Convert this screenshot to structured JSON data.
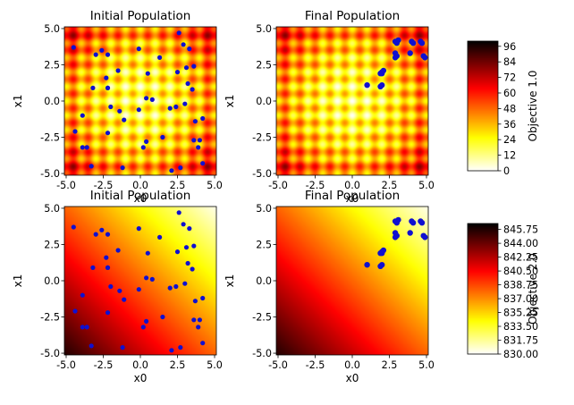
{
  "chart_data": [
    {
      "type": "heatmap",
      "title": "Initial Population",
      "xlabel": "x0",
      "ylabel": "x1",
      "xlim": [
        -5.12,
        5.12
      ],
      "ylim": [
        -5.12,
        5.12
      ],
      "field": "objective_1",
      "population": "initial",
      "xticks": [
        "-5.0",
        "-2.5",
        "0.0",
        "2.5",
        "5.0"
      ],
      "yticks": [
        "-5.0",
        "-2.5",
        "0.0",
        "2.5",
        "5.0"
      ]
    },
    {
      "type": "heatmap",
      "title": "Final Population",
      "xlabel": "x0",
      "ylabel": "x1",
      "xlim": [
        -5.12,
        5.12
      ],
      "ylim": [
        -5.12,
        5.12
      ],
      "field": "objective_1",
      "population": "final",
      "xticks": [
        "-5.0",
        "-2.5",
        "0.0",
        "2.5",
        "5.0"
      ],
      "yticks": [
        "-5.0",
        "-2.5",
        "0.0",
        "2.5",
        "5.0"
      ]
    },
    {
      "type": "heatmap",
      "title": "Initial Population",
      "xlabel": "x0",
      "ylabel": "x1",
      "xlim": [
        -5.12,
        5.12
      ],
      "ylim": [
        -5.12,
        5.12
      ],
      "field": "objective_2",
      "population": "initial",
      "xticks": [
        "-5.0",
        "-2.5",
        "0.0",
        "2.5",
        "5.0"
      ],
      "yticks": [
        "-5.0",
        "-2.5",
        "0.0",
        "2.5",
        "5.0"
      ]
    },
    {
      "type": "heatmap",
      "title": "Final Population",
      "xlabel": "x0",
      "ylabel": "x1",
      "xlim": [
        -5.12,
        5.12
      ],
      "ylim": [
        -5.12,
        5.12
      ],
      "field": "objective_2",
      "population": "final",
      "xticks": [
        "-5.0",
        "-2.5",
        "0.0",
        "2.5",
        "5.0"
      ],
      "yticks": [
        "-5.0",
        "-2.5",
        "0.0",
        "2.5",
        "5.0"
      ]
    }
  ],
  "colorbars": [
    {
      "label": "Objective 1.0",
      "range": [
        0,
        100
      ],
      "ticks": [
        {
          "value": 0,
          "label": "0"
        },
        {
          "value": 12,
          "label": "12"
        },
        {
          "value": 24,
          "label": "24"
        },
        {
          "value": 36,
          "label": "36"
        },
        {
          "value": 48,
          "label": "48"
        },
        {
          "value": 60,
          "label": "60"
        },
        {
          "value": 72,
          "label": "72"
        },
        {
          "value": 84,
          "label": "84"
        },
        {
          "value": 96,
          "label": "96"
        }
      ]
    },
    {
      "label": "Objective 2.0",
      "range": [
        830.0,
        846.5
      ],
      "ticks": [
        {
          "value": 830.0,
          "label": "830.00"
        },
        {
          "value": 831.75,
          "label": "831.75"
        },
        {
          "value": 833.5,
          "label": "833.50"
        },
        {
          "value": 835.25,
          "label": "835.25"
        },
        {
          "value": 837.0,
          "label": "837.00"
        },
        {
          "value": 838.75,
          "label": "838.75"
        },
        {
          "value": 840.5,
          "label": "840.50"
        },
        {
          "value": 842.25,
          "label": "842.25"
        },
        {
          "value": 844.0,
          "label": "844.00"
        },
        {
          "value": 845.75,
          "label": "845.75"
        }
      ]
    }
  ],
  "colormap": "hot_r",
  "marker_color": "#1010d0",
  "initial_population": [
    [
      -4.5,
      3.7
    ],
    [
      -3.0,
      3.2
    ],
    [
      -2.6,
      3.5
    ],
    [
      -2.2,
      3.2
    ],
    [
      -0.1,
      3.6
    ],
    [
      1.3,
      3.0
    ],
    [
      2.6,
      4.7
    ],
    [
      2.9,
      3.9
    ],
    [
      3.3,
      3.6
    ],
    [
      -2.3,
      1.6
    ],
    [
      -2.2,
      0.9
    ],
    [
      -1.5,
      2.1
    ],
    [
      0.5,
      1.9
    ],
    [
      2.5,
      2.0
    ],
    [
      3.1,
      2.3
    ],
    [
      3.6,
      2.4
    ],
    [
      -3.2,
      0.9
    ],
    [
      -2.2,
      0.9
    ],
    [
      -2.0,
      -0.4
    ],
    [
      -1.4,
      -0.7
    ],
    [
      0.4,
      0.2
    ],
    [
      0.8,
      0.1
    ],
    [
      3.2,
      1.2
    ],
    [
      3.5,
      0.8
    ],
    [
      -3.9,
      -1.0
    ],
    [
      -0.1,
      -0.6
    ],
    [
      2.0,
      -0.5
    ],
    [
      2.4,
      -0.4
    ],
    [
      3.0,
      -0.2
    ],
    [
      -4.4,
      -2.1
    ],
    [
      -2.2,
      -2.2
    ],
    [
      -1.1,
      -1.3
    ],
    [
      0.4,
      -2.8
    ],
    [
      1.5,
      -2.5
    ],
    [
      3.7,
      -1.4
    ],
    [
      4.2,
      -1.2
    ],
    [
      -3.9,
      -3.2
    ],
    [
      -3.6,
      -3.2
    ],
    [
      0.2,
      -3.2
    ],
    [
      3.9,
      -3.2
    ],
    [
      3.6,
      -2.7
    ],
    [
      4.0,
      -2.7
    ],
    [
      -3.3,
      -4.5
    ],
    [
      -1.2,
      -4.6
    ],
    [
      2.1,
      -4.8
    ],
    [
      2.7,
      -4.6
    ],
    [
      4.2,
      -4.3
    ]
  ],
  "final_population": [
    [
      1.0,
      1.1
    ],
    [
      1.9,
      1.0
    ],
    [
      2.0,
      1.1
    ],
    [
      1.9,
      1.9
    ],
    [
      2.0,
      2.0
    ],
    [
      2.1,
      2.1
    ],
    [
      2.9,
      3.0
    ],
    [
      3.0,
      3.1
    ],
    [
      2.9,
      3.3
    ],
    [
      3.0,
      4.0
    ],
    [
      2.9,
      4.1
    ],
    [
      3.1,
      4.2
    ],
    [
      3.9,
      3.3
    ],
    [
      4.1,
      4.0
    ],
    [
      4.0,
      4.1
    ],
    [
      4.6,
      4.1
    ],
    [
      4.7,
      4.0
    ],
    [
      4.8,
      3.1
    ],
    [
      4.9,
      3.0
    ],
    [
      2.0,
      1.9
    ]
  ]
}
